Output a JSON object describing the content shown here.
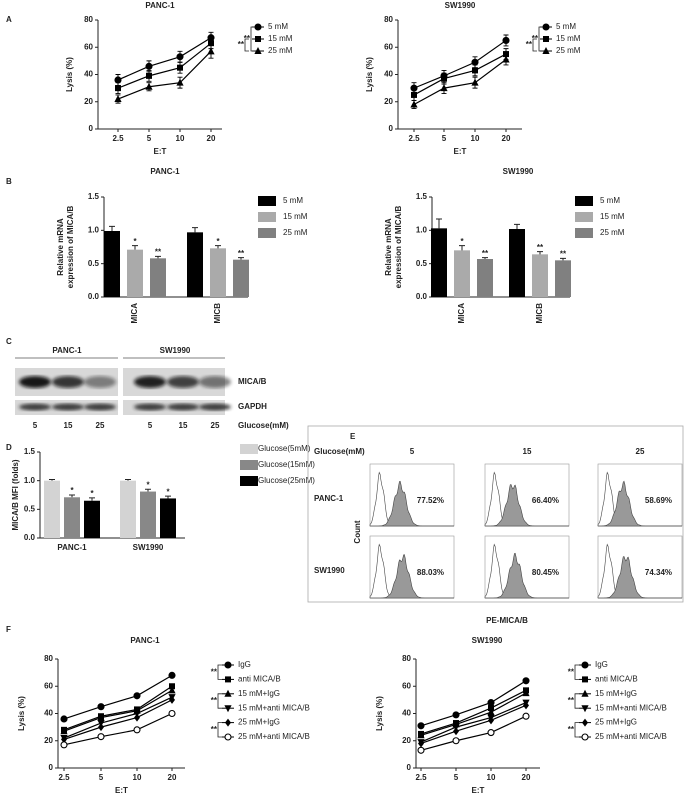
{
  "panel_labels": [
    "A",
    "B",
    "C",
    "D",
    "E",
    "F"
  ],
  "chart_data": [
    {
      "type": "line",
      "title": "PANC-1",
      "x_label": "E:T",
      "y_label": "Lysis (%)",
      "categories": [
        "2.5",
        "5",
        "10",
        "20"
      ],
      "ylim": [
        0,
        80
      ],
      "yticks": [
        0,
        20,
        40,
        60,
        80
      ],
      "series": [
        {
          "name": "5 mM",
          "color": "#000000",
          "marker": "circle",
          "values": [
            36,
            46,
            53,
            67
          ],
          "errors": [
            4,
            4,
            4,
            4
          ]
        },
        {
          "name": "15 mM",
          "color": "#000000",
          "marker": "square",
          "values": [
            30,
            39,
            45,
            63
          ],
          "errors": [
            4,
            4,
            4,
            4
          ]
        },
        {
          "name": "25 mM",
          "color": "#000000",
          "marker": "triangle",
          "values": [
            22,
            31,
            34,
            57
          ],
          "errors": [
            3,
            3,
            4,
            5
          ]
        }
      ],
      "significance": [
        "**",
        "**"
      ]
    },
    {
      "type": "line",
      "title": "SW1990",
      "x_label": "E:T",
      "y_label": "Lysis (%)",
      "categories": [
        "2.5",
        "5",
        "10",
        "20"
      ],
      "ylim": [
        0,
        80
      ],
      "yticks": [
        0,
        20,
        40,
        60,
        80
      ],
      "series": [
        {
          "name": "5 mM",
          "color": "#000000",
          "marker": "circle",
          "values": [
            30,
            39,
            49,
            65
          ],
          "errors": [
            4,
            4,
            4,
            4
          ]
        },
        {
          "name": "15 mM",
          "color": "#000000",
          "marker": "square",
          "values": [
            25,
            37,
            43,
            55
          ],
          "errors": [
            4,
            4,
            4,
            4
          ]
        },
        {
          "name": "25 mM",
          "color": "#000000",
          "marker": "triangle",
          "values": [
            18,
            30,
            34,
            51
          ],
          "errors": [
            3,
            4,
            4,
            4
          ]
        }
      ],
      "significance": [
        "**",
        "**"
      ]
    },
    {
      "type": "bar",
      "title": "PANC-1",
      "y_label": [
        "Relative mRNA",
        "expression of MICA/B"
      ],
      "categories": [
        "MICA",
        "MICB"
      ],
      "ylim": [
        0,
        1.5
      ],
      "yticks": [
        {
          "value": 0,
          "label": "0.0"
        },
        0.5,
        {
          "value": 1,
          "label": "1.0"
        },
        1.5
      ],
      "series": [
        {
          "name": "5 mM",
          "color": "#000000",
          "values": [
            0.99,
            0.97
          ],
          "errors": [
            0.07,
            0.07
          ]
        },
        {
          "name": "15 mM",
          "color": "#aaaaaa",
          "values": [
            0.71,
            0.73
          ],
          "errors": [
            0.06,
            0.04
          ],
          "labels": [
            "*",
            "*"
          ]
        },
        {
          "name": "25 mM",
          "color": "#808080",
          "values": [
            0.58,
            0.56
          ],
          "errors": [
            0.03,
            0.03
          ],
          "labels": [
            "**",
            "**"
          ]
        }
      ]
    },
    {
      "type": "bar",
      "title": "SW1990",
      "y_label": [
        "Relative mRNA",
        "expression of MICA/B"
      ],
      "categories": [
        "MICA",
        "MICB"
      ],
      "ylim": [
        0,
        1.5
      ],
      "yticks": [
        {
          "value": 0,
          "label": "0.0"
        },
        0.5,
        {
          "value": 1,
          "label": "1.0"
        },
        1.5
      ],
      "series": [
        {
          "name": "5 mM",
          "color": "#000000",
          "values": [
            1.03,
            1.02
          ],
          "errors": [
            0.14,
            0.07
          ]
        },
        {
          "name": "15 mM",
          "color": "#aaaaaa",
          "values": [
            0.7,
            0.64
          ],
          "errors": [
            0.07,
            0.04
          ],
          "labels": [
            "*",
            "**"
          ]
        },
        {
          "name": "25 mM",
          "color": "#808080",
          "values": [
            0.57,
            0.55
          ],
          "errors": [
            0.02,
            0.03
          ],
          "labels": [
            "**",
            "**"
          ]
        }
      ]
    },
    {
      "type": "bar",
      "y_label": "MICA/B MFI (folds)",
      "categories": [
        "PANC-1",
        "SW1990"
      ],
      "ylim": [
        0,
        1.5
      ],
      "yticks": [
        {
          "value": 0,
          "label": "0.0"
        },
        0.5,
        {
          "value": 1,
          "label": "1.0"
        },
        1.5
      ],
      "series": [
        {
          "name": "Glucose(5mM)",
          "color": "#d3d3d3",
          "values": [
            1.0,
            1.0
          ],
          "errors": [
            0.02,
            0.02
          ]
        },
        {
          "name": "Glucose(15mM)",
          "color": "#888888",
          "values": [
            0.71,
            0.81
          ],
          "errors": [
            0.04,
            0.04
          ],
          "labels": [
            "*",
            "*"
          ]
        },
        {
          "name": "Glucose(25mM)",
          "color": "#000000",
          "values": [
            0.65,
            0.69
          ],
          "errors": [
            0.05,
            0.04
          ],
          "labels": [
            "*",
            "*"
          ]
        }
      ]
    },
    {
      "type": "line",
      "title": "PANC-1",
      "x_label": "E:T",
      "y_label": "Lysis (%)",
      "categories": [
        "2.5",
        "5",
        "10",
        "20"
      ],
      "ylim": [
        0,
        80
      ],
      "yticks": [
        0,
        20,
        40,
        60,
        80
      ],
      "series": [
        {
          "name": "IgG",
          "color": "#000000",
          "marker": "circle",
          "values": [
            36,
            45,
            53,
            68
          ]
        },
        {
          "name": "anti MICA/B",
          "color": "#000000",
          "marker": "square",
          "values": [
            28,
            38,
            43,
            60
          ]
        },
        {
          "name": "15 mM+IgG",
          "color": "#000000",
          "marker": "triangle",
          "values": [
            27,
            37,
            42,
            57
          ]
        },
        {
          "name": "15 mM+anti MICA/B",
          "color": "#000000",
          "marker": "triangle-down",
          "values": [
            22,
            33,
            40,
            52
          ]
        },
        {
          "name": "25 mM+IgG",
          "color": "#000000",
          "marker": "diamond",
          "values": [
            21,
            30,
            37,
            50
          ]
        },
        {
          "name": "25 mM+anti MICA/B",
          "color": "#000000",
          "marker": "open-circle",
          "values": [
            17,
            23,
            28,
            40
          ]
        }
      ],
      "significance": [
        "**",
        "**",
        "**"
      ]
    },
    {
      "type": "line",
      "title": "SW1990",
      "x_label": "E:T",
      "y_label": "Lysis (%)",
      "categories": [
        "2.5",
        "5",
        "10",
        "20"
      ],
      "ylim": [
        0,
        80
      ],
      "yticks": [
        0,
        20,
        40,
        60,
        80
      ],
      "series": [
        {
          "name": "IgG",
          "color": "#000000",
          "marker": "circle",
          "values": [
            31,
            39,
            48,
            64
          ]
        },
        {
          "name": "anti MICA/B",
          "color": "#000000",
          "marker": "square",
          "values": [
            25,
            33,
            44,
            57
          ]
        },
        {
          "name": "15 mM+IgG",
          "color": "#000000",
          "marker": "triangle",
          "values": [
            24,
            32,
            41,
            55
          ]
        },
        {
          "name": "15 mM+anti MICA/B",
          "color": "#000000",
          "marker": "triangle-down",
          "values": [
            19,
            30,
            37,
            48
          ]
        },
        {
          "name": "25 mM+IgG",
          "color": "#000000",
          "marker": "diamond",
          "values": [
            18,
            27,
            35,
            46
          ]
        },
        {
          "name": "25 mM+anti MICA/B",
          "color": "#000000",
          "marker": "open-circle",
          "values": [
            13,
            20,
            26,
            38
          ]
        }
      ],
      "significance": [
        "**",
        "**",
        "**"
      ]
    }
  ],
  "blot": {
    "cell_lines": [
      "PANC-1",
      "SW1990"
    ],
    "rows": [
      "MICA/B",
      "GAPDH"
    ],
    "lanes": [
      "5",
      "15",
      "25",
      "5",
      "15",
      "25"
    ],
    "lane_axis": "Glucose(mM)"
  },
  "flow": {
    "header": "Glucose(mM)",
    "columns": [
      "5",
      "15",
      "25"
    ],
    "rows": [
      {
        "name": "PANC-1",
        "percents": [
          "77.52%",
          "66.40%",
          "58.69%"
        ]
      },
      {
        "name": "SW1990",
        "percents": [
          "88.03%",
          "80.45%",
          "74.34%"
        ]
      }
    ],
    "y_label": "Count",
    "x_label": "PE-MICA/B"
  }
}
